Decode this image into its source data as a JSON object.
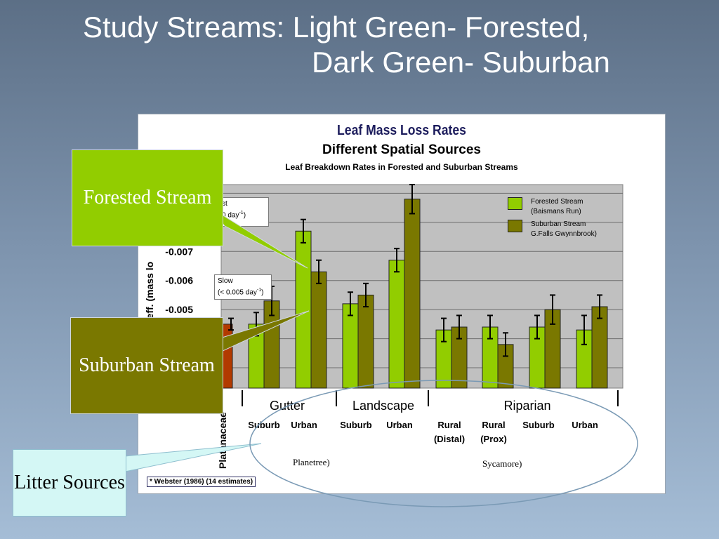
{
  "slide": {
    "title_line1": "Study Streams: Light Green- Forested,",
    "title_line2": "Dark Green- Suburban"
  },
  "colors": {
    "forested": "#92cd00",
    "suburban": "#7a7800",
    "platanaceae": "#b23a00",
    "litter_fill": "#d4f7f5"
  },
  "chart_data": {
    "type": "bar",
    "title": "Leaf Mass Loss Rates",
    "subtitle": "Different Spatial Sources",
    "subtitle2": "Leaf Breakdown Rates in Forested and Suburban Streams",
    "ylabel_partial": "oeff. (mass lo",
    "ytick_labels": [
      "-0.007",
      "-0.006",
      "-0.005"
    ],
    "ylim": [
      -0.0023,
      -0.0093
    ],
    "yticks": [
      -0.003,
      -0.004,
      -0.005,
      -0.006,
      -0.007,
      -0.008,
      -0.009
    ],
    "grid": true,
    "legend_position": "top-right",
    "legend": [
      {
        "label_line1": "Forested Stream",
        "label_line2": "(Baismans Run)"
      },
      {
        "label_line1": "Suburban Stream",
        "label_line2": "G.Falls Gwynnbrook)"
      }
    ],
    "callout_fast": {
      "line1": "st",
      "line2": "0 day",
      "sup": "-1",
      "close": ")"
    },
    "callout_slow": {
      "line1": "Slow",
      "line2": "(< 0.005 day",
      "sup": "-1",
      "close": ")"
    },
    "platanaceae": {
      "label": "Platanaceae",
      "value": -0.0045,
      "err": 0.0002
    },
    "groups": [
      {
        "label": "Gutter"
      },
      {
        "label": "Landscape"
      },
      {
        "label": "Riparian"
      }
    ],
    "categories": [
      {
        "label": "Suburb",
        "label2": ""
      },
      {
        "label": "Urban",
        "label2": ""
      },
      {
        "label": "Suburb",
        "label2": ""
      },
      {
        "label": "Urban",
        "label2": ""
      },
      {
        "label": "Rural",
        "label2": "(Distal)"
      },
      {
        "label": "Rural",
        "label2": "(Prox)"
      },
      {
        "label": "Suburb",
        "label2": ""
      },
      {
        "label": "Urban",
        "label2": ""
      }
    ],
    "series": [
      {
        "key": "forested",
        "values": [
          -0.0045,
          -0.0077,
          -0.0052,
          -0.0067,
          -0.0043,
          -0.0044,
          -0.0044,
          -0.0043
        ],
        "errors": [
          0.0004,
          0.0004,
          0.0004,
          0.0004,
          0.0004,
          0.0004,
          0.0004,
          0.0005
        ]
      },
      {
        "key": "suburban",
        "values": [
          -0.0053,
          -0.0063,
          -0.0055,
          -0.0088,
          -0.0044,
          -0.0038,
          -0.005,
          -0.0051
        ],
        "errors": [
          0.0005,
          0.0004,
          0.0004,
          0.0005,
          0.0004,
          0.0004,
          0.0005,
          0.0004
        ]
      }
    ],
    "source_notes": [
      {
        "text": "Planetree)"
      },
      {
        "text": "Sycamore)"
      }
    ],
    "footnote": "* Webster (1986) (14 estimates)"
  },
  "tags": {
    "forested": "Forested Stream",
    "suburban": "Suburban Stream",
    "litter": "Litter Sources"
  }
}
